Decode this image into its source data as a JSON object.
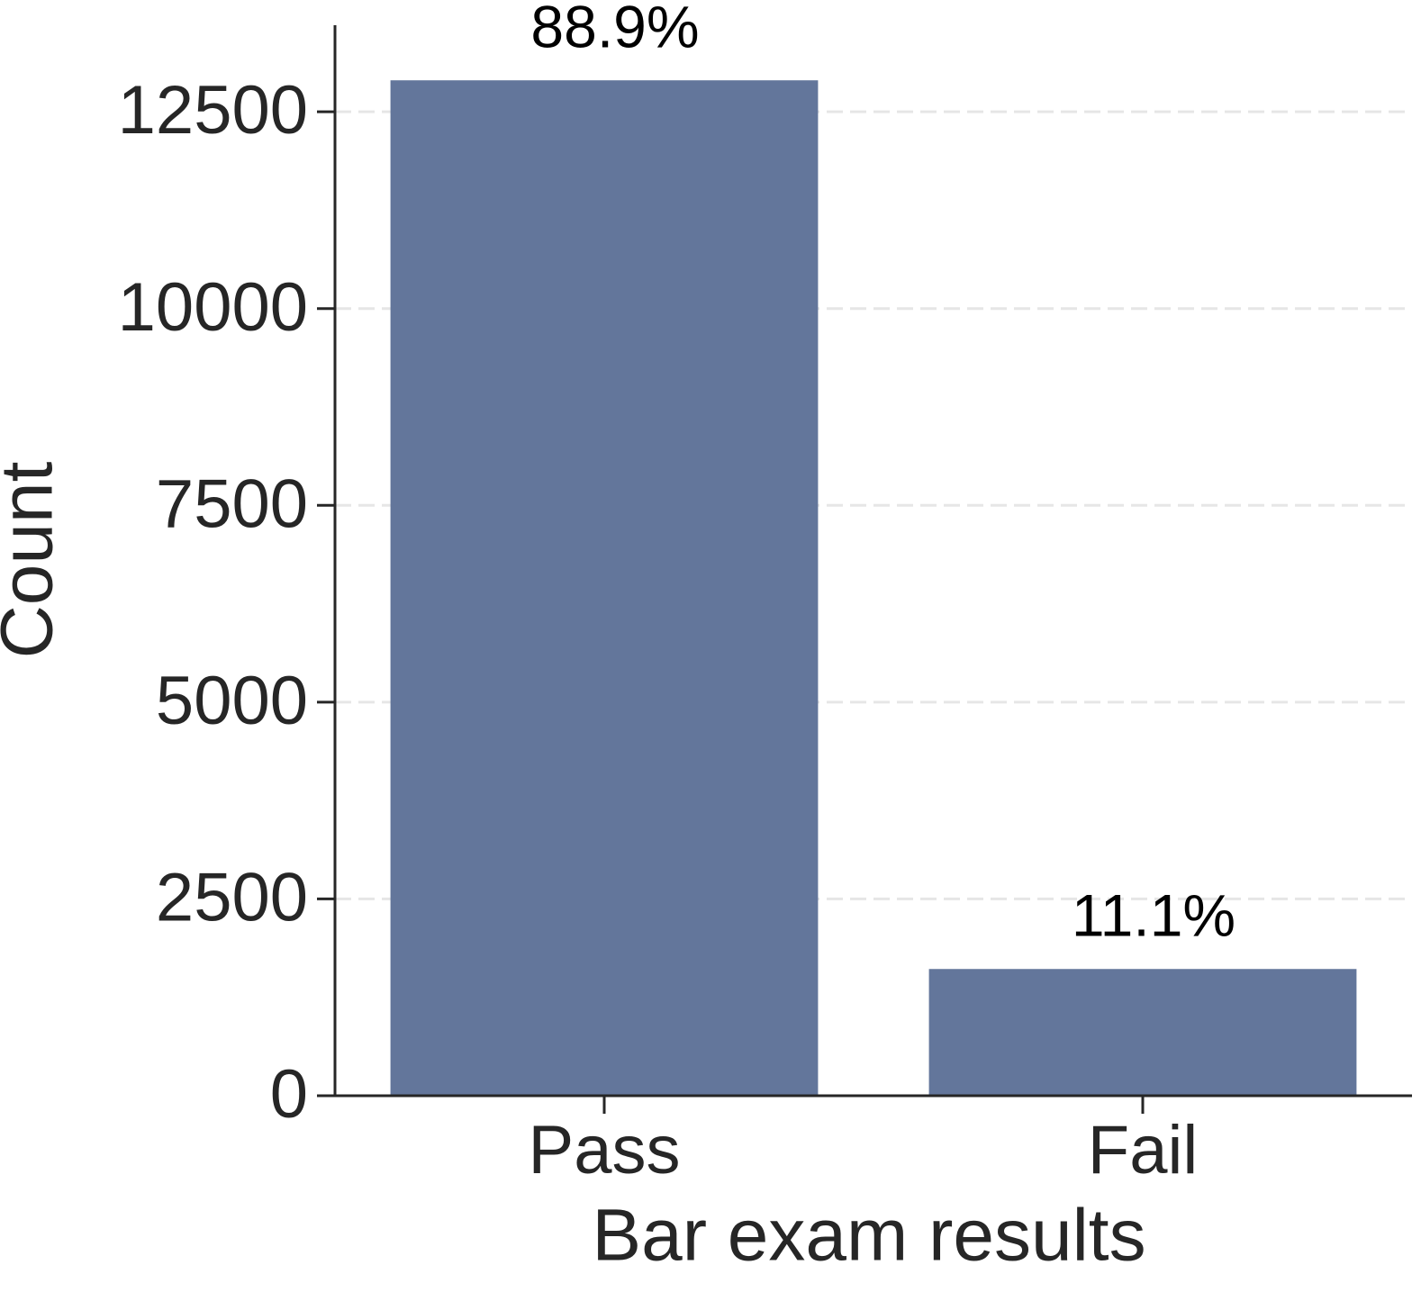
{
  "chart_data": {
    "type": "bar",
    "x_label": "Bar exam results",
    "y_label": "Count",
    "categories": [
      "Pass",
      "Fail"
    ],
    "values": [
      12900,
      1610
    ],
    "color": "#63769b",
    "annotations": [
      "88.9%",
      "11.1%"
    ],
    "ylim": [
      0,
      13600
    ],
    "yticks": [
      0,
      2500,
      5000,
      7500,
      10000,
      12500
    ],
    "grid": true
  }
}
